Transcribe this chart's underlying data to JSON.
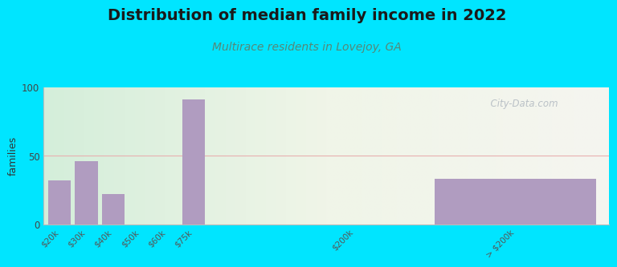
{
  "title": "Distribution of median family income in 2022",
  "subtitle": "Multirace residents in Lovejoy, GA",
  "ylabel": "families",
  "categories": [
    "$20k",
    "$30k",
    "$40k",
    "$50k",
    "$60k",
    "$75k",
    "$200k",
    "> $200k"
  ],
  "values": [
    32,
    46,
    22,
    0,
    0,
    91,
    0,
    33
  ],
  "bar_positions": [
    0,
    1,
    2,
    3,
    4,
    5,
    11,
    17
  ],
  "bar_widths": [
    0.85,
    0.85,
    0.85,
    0.85,
    0.85,
    0.85,
    0.85,
    6.0
  ],
  "bar_color": "#b09cc0",
  "outer_bg": "#00e5ff",
  "ylim": [
    0,
    100
  ],
  "yticks": [
    0,
    50,
    100
  ],
  "xlim": [
    -0.6,
    20.5
  ],
  "title_fontsize": 14,
  "subtitle_fontsize": 10,
  "watermark": "  City-Data.com"
}
